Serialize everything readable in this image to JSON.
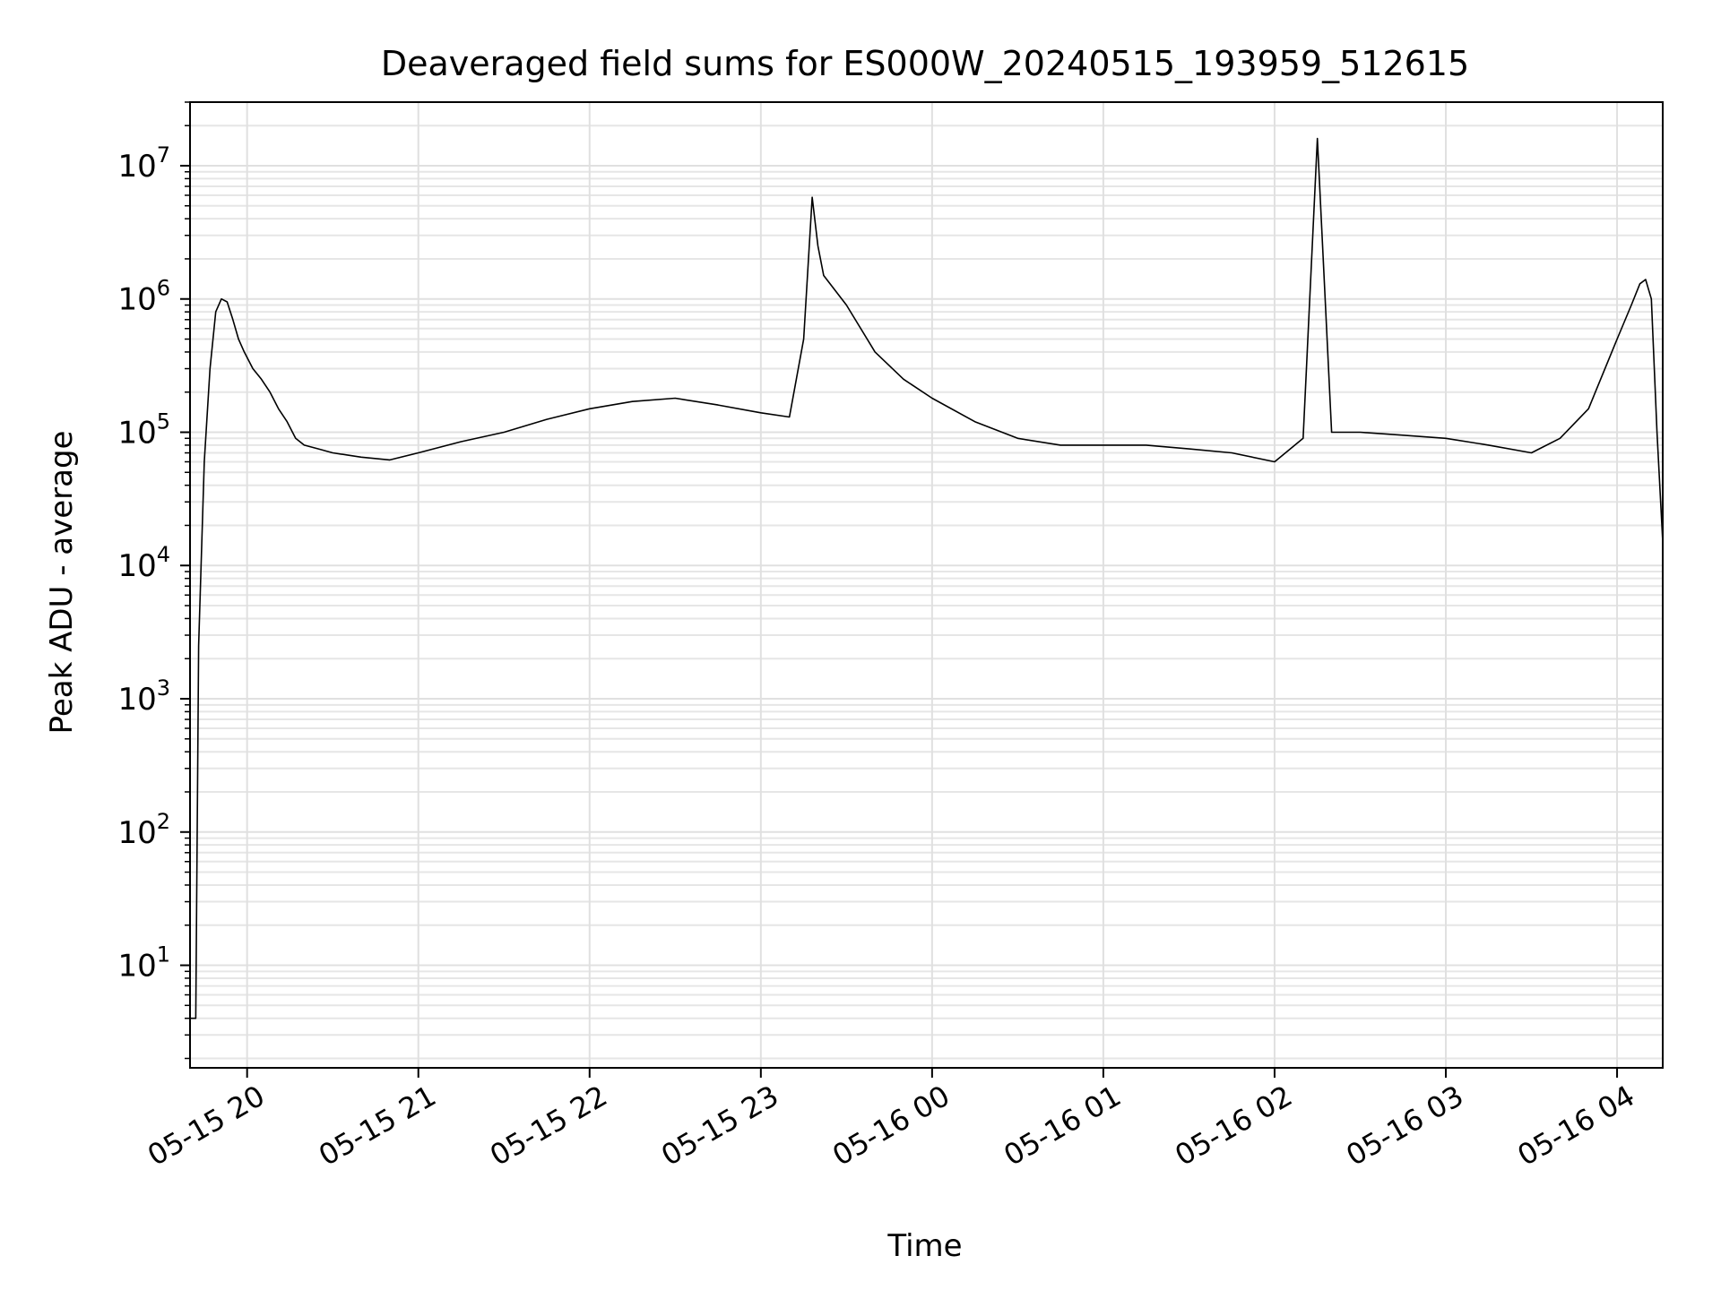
{
  "chart_data": {
    "type": "line",
    "title": "Deaveraged field sums for ES000W_20240515_193959_512615",
    "xlabel": "Time",
    "ylabel": "Peak ADU - average",
    "yscale": "log",
    "ylim": [
      1.7,
      30000000
    ],
    "xlim": [
      "2024-05-15 19:40",
      "2024-05-16 04:16"
    ],
    "grid": true,
    "legend": "none",
    "line_color": "#000000",
    "x_ticks": [
      {
        "value": "2024-05-15 20:00",
        "label": "05-15 20"
      },
      {
        "value": "2024-05-15 21:00",
        "label": "05-15 21"
      },
      {
        "value": "2024-05-15 22:00",
        "label": "05-15 22"
      },
      {
        "value": "2024-05-15 23:00",
        "label": "05-15 23"
      },
      {
        "value": "2024-05-16 00:00",
        "label": "05-16 00"
      },
      {
        "value": "2024-05-16 01:00",
        "label": "05-16 01"
      },
      {
        "value": "2024-05-16 02:00",
        "label": "05-16 02"
      },
      {
        "value": "2024-05-16 03:00",
        "label": "05-16 03"
      },
      {
        "value": "2024-05-16 04:00",
        "label": "05-16 04"
      }
    ],
    "y_ticks": [
      {
        "value": 10,
        "base": "10",
        "exp": "1"
      },
      {
        "value": 100,
        "base": "10",
        "exp": "2"
      },
      {
        "value": 1000,
        "base": "10",
        "exp": "3"
      },
      {
        "value": 10000,
        "base": "10",
        "exp": "4"
      },
      {
        "value": 100000,
        "base": "10",
        "exp": "5"
      },
      {
        "value": 1000000,
        "base": "10",
        "exp": "6"
      },
      {
        "value": 10000000,
        "base": "10",
        "exp": "7"
      }
    ],
    "series": [
      {
        "x": [
          "2024-05-15 19:40",
          "2024-05-15 19:41",
          "2024-05-15 19:42",
          "2024-05-15 19:43",
          "2024-05-15 19:44",
          "2024-05-15 19:45",
          "2024-05-15 19:47",
          "2024-05-15 19:49",
          "2024-05-15 19:51",
          "2024-05-15 19:53",
          "2024-05-15 19:55",
          "2024-05-15 19:57",
          "2024-05-15 19:59",
          "2024-05-15 20:02",
          "2024-05-15 20:05",
          "2024-05-15 20:08",
          "2024-05-15 20:11",
          "2024-05-15 20:14",
          "2024-05-15 20:17",
          "2024-05-15 20:20",
          "2024-05-15 20:25",
          "2024-05-15 20:30",
          "2024-05-15 20:40",
          "2024-05-15 20:50",
          "2024-05-15 21:00",
          "2024-05-15 21:15",
          "2024-05-15 21:30",
          "2024-05-15 21:45",
          "2024-05-15 22:00",
          "2024-05-15 22:15",
          "2024-05-15 22:30",
          "2024-05-15 22:45",
          "2024-05-15 23:00",
          "2024-05-15 23:10",
          "2024-05-15 23:15",
          "2024-05-15 23:18",
          "2024-05-15 23:20",
          "2024-05-15 23:22",
          "2024-05-15 23:30",
          "2024-05-15 23:40",
          "2024-05-15 23:50",
          "2024-05-16 00:00",
          "2024-05-16 00:15",
          "2024-05-16 00:30",
          "2024-05-16 00:45",
          "2024-05-16 01:00",
          "2024-05-16 01:15",
          "2024-05-16 01:30",
          "2024-05-16 01:45",
          "2024-05-16 02:00",
          "2024-05-16 02:10",
          "2024-05-16 02:15",
          "2024-05-16 02:20",
          "2024-05-16 02:30",
          "2024-05-16 02:45",
          "2024-05-16 03:00",
          "2024-05-16 03:15",
          "2024-05-16 03:30",
          "2024-05-16 03:40",
          "2024-05-16 03:50",
          "2024-05-16 04:00",
          "2024-05-16 04:05",
          "2024-05-16 04:08",
          "2024-05-16 04:10",
          "2024-05-16 04:12",
          "2024-05-16 04:14",
          "2024-05-16 04:16"
        ],
        "y": [
          4,
          4,
          4,
          2500,
          12000,
          60000,
          300000,
          800000,
          1000000,
          950000,
          700000,
          500000,
          400000,
          300000,
          250000,
          200000,
          150000,
          120000,
          90000,
          80000,
          75000,
          70000,
          65000,
          62000,
          70000,
          85000,
          100000,
          125000,
          150000,
          170000,
          180000,
          160000,
          140000,
          130000,
          500000,
          5800000,
          2500000,
          1500000,
          900000,
          400000,
          250000,
          180000,
          120000,
          90000,
          80000,
          80000,
          80000,
          75000,
          70000,
          60000,
          90000,
          16000000,
          100000,
          100000,
          95000,
          90000,
          80000,
          70000,
          90000,
          150000,
          500000,
          900000,
          1300000,
          1400000,
          1000000,
          100000,
          15000
        ]
      }
    ]
  }
}
